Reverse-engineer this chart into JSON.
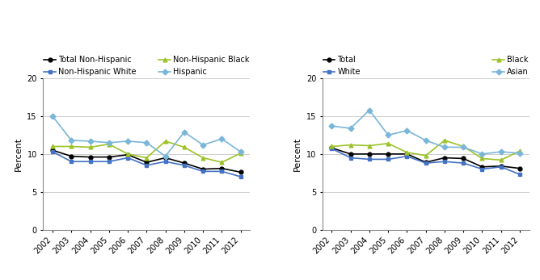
{
  "years": [
    2002,
    2003,
    2004,
    2005,
    2006,
    2007,
    2008,
    2009,
    2010,
    2011,
    2012
  ],
  "left_chart": {
    "series_order": [
      "Total Non-Hispanic",
      "Non-Hispanic White",
      "Non-Hispanic Black",
      "Hispanic"
    ],
    "series": {
      "Total Non-Hispanic": {
        "values": [
          10.5,
          9.7,
          9.6,
          9.6,
          9.9,
          8.9,
          9.5,
          8.8,
          8.0,
          8.1,
          7.6
        ],
        "color": "#000000",
        "marker": "o"
      },
      "Non-Hispanic White": {
        "values": [
          10.3,
          9.0,
          9.0,
          9.0,
          9.5,
          8.5,
          9.0,
          8.5,
          7.7,
          7.7,
          7.0
        ],
        "color": "#4472C4",
        "marker": "s"
      },
      "Non-Hispanic Black": {
        "values": [
          11.0,
          11.0,
          10.9,
          11.3,
          10.0,
          9.5,
          11.7,
          10.9,
          9.5,
          8.9,
          10.1
        ],
        "color": "#9DC32A",
        "marker": "^"
      },
      "Hispanic": {
        "values": [
          15.0,
          11.8,
          11.7,
          11.5,
          11.7,
          11.5,
          9.7,
          12.9,
          11.2,
          12.0,
          10.3
        ],
        "color": "#7AB6D9",
        "marker": "D"
      }
    }
  },
  "right_chart": {
    "series_order": [
      "Total",
      "White",
      "Black",
      "Asian"
    ],
    "series": {
      "Total": {
        "values": [
          10.8,
          10.0,
          10.0,
          10.0,
          10.0,
          8.9,
          9.5,
          9.4,
          8.3,
          8.4,
          8.1
        ],
        "color": "#000000",
        "marker": "o"
      },
      "White": {
        "values": [
          10.7,
          9.5,
          9.3,
          9.3,
          9.7,
          8.8,
          9.0,
          8.8,
          8.0,
          8.3,
          7.3
        ],
        "color": "#4472C4",
        "marker": "s"
      },
      "Black": {
        "values": [
          11.0,
          11.2,
          11.1,
          11.4,
          10.2,
          9.8,
          11.8,
          11.0,
          9.4,
          9.2,
          10.4
        ],
        "color": "#9DC32A",
        "marker": "^"
      },
      "Asian": {
        "values": [
          13.7,
          13.4,
          15.8,
          12.5,
          13.1,
          11.8,
          10.9,
          10.9,
          10.0,
          10.3,
          10.1
        ],
        "color": "#7AB6D9",
        "marker": "D"
      }
    }
  },
  "ylabel": "Percent",
  "ylim": [
    0,
    20
  ],
  "yticks": [
    0,
    5,
    10,
    15,
    20
  ],
  "background_color": "#FFFFFF",
  "grid_color": "#BBBBBB",
  "legend_fontsize": 7.0,
  "tick_fontsize": 7.0,
  "ylabel_fontsize": 8.0,
  "linewidth": 1.2,
  "markersize": 3.5
}
